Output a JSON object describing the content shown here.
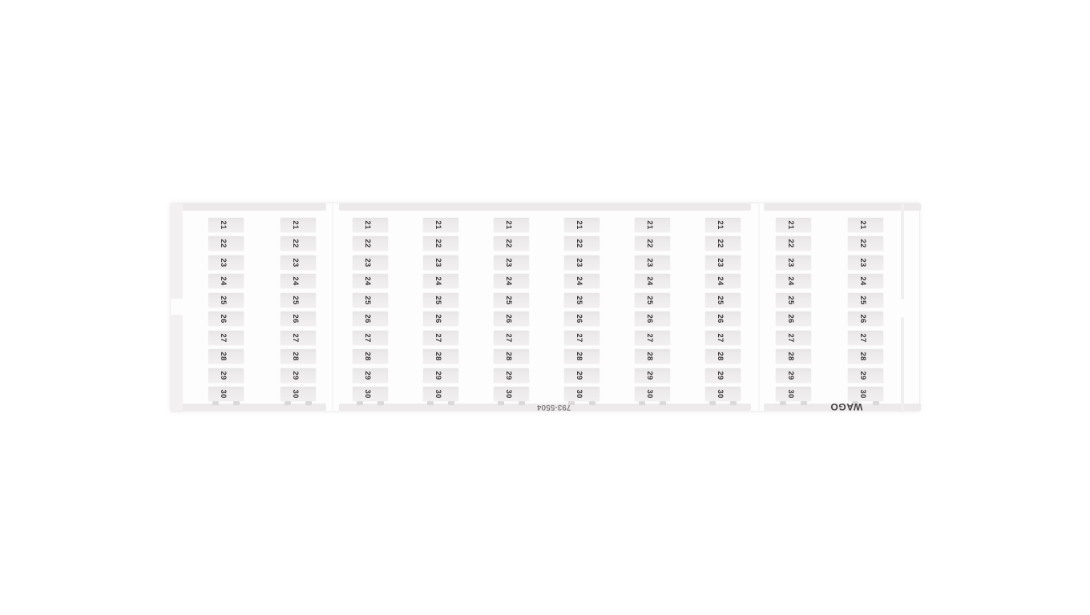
{
  "product": {
    "brand": "WAGO",
    "part_number": "793-5504",
    "description": "terminal block marker card"
  },
  "card": {
    "part_number": "793-5504",
    "brand": "WAGO",
    "grid": {
      "columns": 10,
      "rows": 10,
      "labels": [
        "21",
        "22",
        "23",
        "24",
        "25",
        "26",
        "27",
        "28",
        "29",
        "30"
      ]
    },
    "colors": {
      "page_background": "#ffffff",
      "card_background": "#fdfdfd",
      "edge_strip": "#ece9ea",
      "edge_side_strip": "#f2f0f1",
      "cell_background": "#edebeb",
      "digit": "#3a3637",
      "print_text": "#4f4b4c"
    }
  }
}
